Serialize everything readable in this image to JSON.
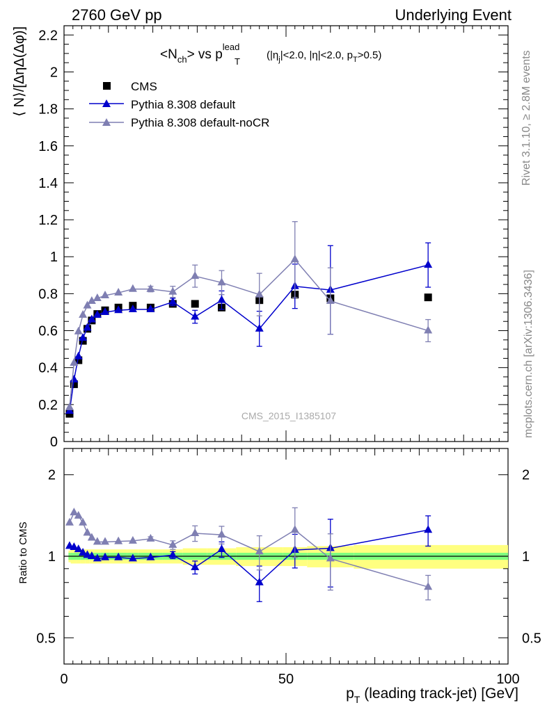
{
  "header": {
    "left": "2760 GeV pp",
    "right": "Underlying Event"
  },
  "side_labels": {
    "rivet": "Rivet 3.1.10, ≥ 2.8M events",
    "mcplots": "mcplots.cern.ch [arXiv:1306.3436]"
  },
  "watermark": "CMS_2015_I1385107",
  "title": {
    "main_pre": "<N",
    "main_sub": "ch",
    "main_mid": "> vs p",
    "main_sup": "lead",
    "main_sub2": "T",
    "cut_text": "(|η",
    "cut_sub": "j",
    "cut_text2": "|<2.0, |η|<2.0, p",
    "cut_sub2": "T",
    "cut_text3": ">0.5)"
  },
  "axes": {
    "ylabel_main": "⟨ N⟩/[ΔηΔ(Δφ)]",
    "ylabel_ratio": "Ratio to CMS",
    "xlabel": "p",
    "xlabel_sub": "T",
    "xlabel_rest": " (leading track-jet) [GeV]"
  },
  "legend": {
    "cms": "CMS",
    "pythia_default": "Pythia 8.308 default",
    "pythia_nocr": "Pythia 8.308 default-noCR"
  },
  "colors": {
    "cms": "#000000",
    "pythia_default": "#0000cc",
    "pythia_nocr": "#7f7fb2",
    "band_inner": "#7fff7f",
    "band_outer": "#ffff80"
  },
  "chart_data": [
    {
      "type": "scatter",
      "panel": "main",
      "xlim": [
        0,
        100
      ],
      "ylim": [
        0,
        2.25
      ],
      "yticks": [
        0.2,
        0.4,
        0.6,
        0.8,
        1,
        1.2,
        1.4,
        1.6,
        1.8,
        2,
        2.2
      ],
      "ytick_labels": [
        "0.2",
        "0.4",
        "0.6",
        "0.8",
        "1",
        "1.2",
        "1.4",
        "1.6",
        "1.8",
        "2",
        "2.2"
      ],
      "bottom_tick_label": "0",
      "series": [
        {
          "name": "CMS",
          "marker": "square",
          "x": [
            1.25,
            2.25,
            3.25,
            4.25,
            5.25,
            6.25,
            7.5,
            9.25,
            12.25,
            15.5,
            19.5,
            24.5,
            29.5,
            35.5,
            44,
            52,
            60,
            82
          ],
          "y": [
            0.15,
            0.31,
            0.44,
            0.545,
            0.61,
            0.655,
            0.69,
            0.71,
            0.725,
            0.735,
            0.725,
            0.745,
            0.745,
            0.725,
            0.765,
            0.795,
            0.775,
            0.78
          ]
        },
        {
          "name": "Pythia 8.308 default",
          "marker": "triangle",
          "line": true,
          "x": [
            1.25,
            2.25,
            3.25,
            4.25,
            5.25,
            6.25,
            7.5,
            9.25,
            12.25,
            15.5,
            19.5,
            24.5,
            29.5,
            35.5,
            44,
            52,
            60,
            82
          ],
          "y": [
            0.165,
            0.335,
            0.46,
            0.56,
            0.615,
            0.66,
            0.685,
            0.7,
            0.71,
            0.715,
            0.715,
            0.755,
            0.675,
            0.765,
            0.61,
            0.84,
            0.82,
            0.955
          ],
          "err": [
            0,
            0,
            0,
            0,
            0,
            0,
            0,
            0,
            0,
            0,
            0,
            0.02,
            0.035,
            0.05,
            0.095,
            0.12,
            0.24,
            0.12
          ]
        },
        {
          "name": "Pythia 8.308 default-noCR",
          "marker": "triangle",
          "line": true,
          "x": [
            1.25,
            2.25,
            3.25,
            4.25,
            5.25,
            6.25,
            7.5,
            9.25,
            12.25,
            15.5,
            19.5,
            24.5,
            29.5,
            35.5,
            44,
            52,
            60,
            82
          ],
          "y": [
            0.185,
            0.425,
            0.595,
            0.685,
            0.735,
            0.76,
            0.775,
            0.79,
            0.805,
            0.825,
            0.825,
            0.81,
            0.895,
            0.86,
            0.795,
            0.985,
            0.76,
            0.6
          ],
          "err": [
            0,
            0,
            0,
            0,
            0,
            0,
            0,
            0,
            0,
            0,
            0.015,
            0.03,
            0.06,
            0.065,
            0.115,
            0.205,
            0.18,
            0.06
          ]
        }
      ]
    },
    {
      "type": "scatter",
      "panel": "ratio",
      "xlim": [
        0,
        100
      ],
      "ylim": [
        0.4,
        2.5
      ],
      "ylog": true,
      "yticks": [
        0.5,
        1,
        2
      ],
      "ytick_labels": [
        "0.5",
        "1",
        "2"
      ],
      "xticks": [
        0,
        50,
        100
      ],
      "xtick_labels": [
        "0",
        "50",
        "100"
      ],
      "band": {
        "x": [
          1,
          1.5,
          2.75,
          3.75,
          4.75,
          5.75,
          6.75,
          8.25,
          10.25,
          14.25,
          16.75,
          22.25,
          26.75,
          32.25,
          38.75,
          49.25,
          54.75,
          65.25,
          100
        ],
        "inner_half": [
          0.03,
          0.03,
          0.03,
          0.03,
          0.03,
          0.03,
          0.03,
          0.03,
          0.03,
          0.03,
          0.03,
          0.03,
          0.03,
          0.03,
          0.03,
          0.03,
          0.03,
          0.03
        ],
        "outer_half": [
          0.05,
          0.06,
          0.06,
          0.06,
          0.06,
          0.06,
          0.06,
          0.06,
          0.06,
          0.06,
          0.06,
          0.06,
          0.07,
          0.07,
          0.08,
          0.08,
          0.09,
          0.1
        ]
      },
      "series": [
        {
          "name": "Pythia 8.308 default",
          "marker": "triangle",
          "line": true,
          "x": [
            1.25,
            2.25,
            3.25,
            4.25,
            5.25,
            6.25,
            7.5,
            9.25,
            12.25,
            15.5,
            19.5,
            24.5,
            29.5,
            35.5,
            44,
            52,
            60,
            82
          ],
          "y": [
            1.09,
            1.08,
            1.06,
            1.03,
            1.01,
            1.0,
            0.98,
            0.99,
            0.99,
            0.98,
            0.99,
            1.01,
            0.91,
            1.06,
            0.8,
            1.055,
            1.07,
            1.25
          ],
          "err": [
            0,
            0,
            0,
            0,
            0,
            0,
            0,
            0,
            0,
            0,
            0,
            0.03,
            0.05,
            0.07,
            0.12,
            0.15,
            0.3,
            0.16
          ]
        },
        {
          "name": "Pythia 8.308 default-noCR",
          "marker": "triangle",
          "line": true,
          "x": [
            1.25,
            2.25,
            3.25,
            4.25,
            5.25,
            6.25,
            7.5,
            9.25,
            12.25,
            15.5,
            19.5,
            24.5,
            29.5,
            35.5,
            44,
            52,
            60,
            82
          ],
          "y": [
            1.33,
            1.45,
            1.41,
            1.33,
            1.22,
            1.17,
            1.13,
            1.13,
            1.135,
            1.14,
            1.16,
            1.1,
            1.215,
            1.2,
            1.04,
            1.25,
            0.98,
            0.77
          ],
          "err": [
            0,
            0,
            0,
            0,
            0,
            0,
            0,
            0,
            0,
            0,
            0.02,
            0.04,
            0.08,
            0.09,
            0.15,
            0.26,
            0.23,
            0.08
          ]
        }
      ]
    }
  ]
}
